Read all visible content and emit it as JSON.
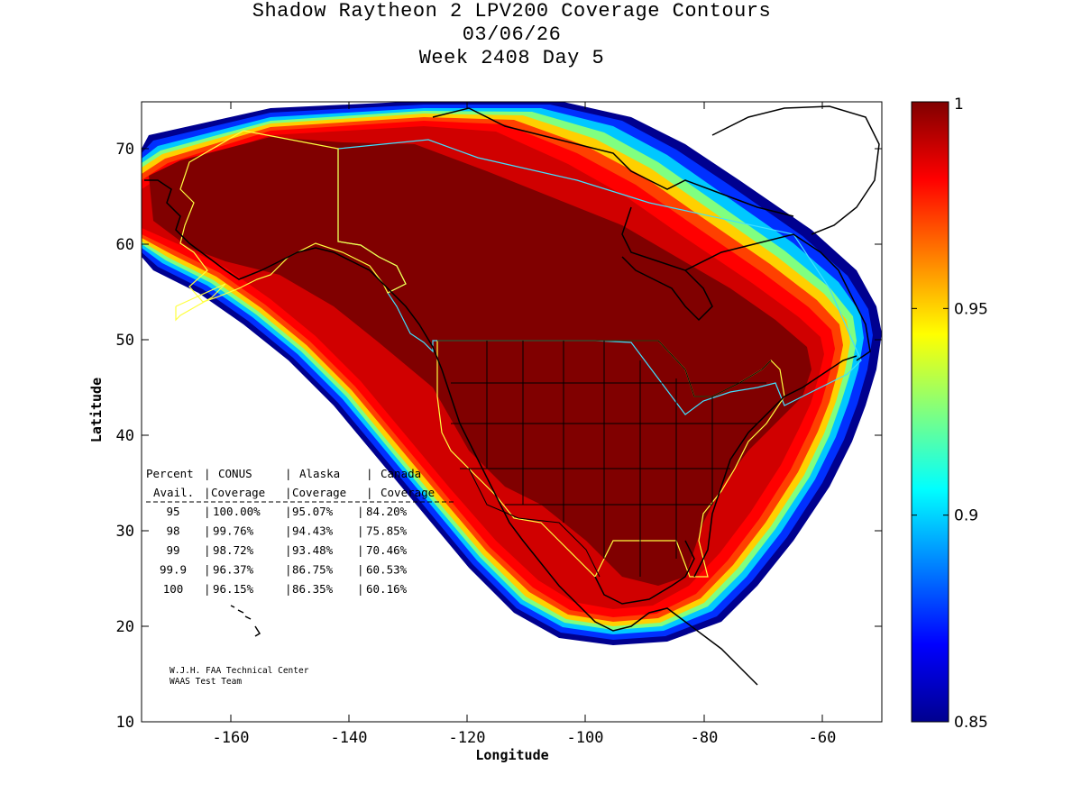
{
  "title_lines": [
    "Shadow Raytheon 2 LPV200 Coverage Contours",
    "03/06/26",
    "Week 2408 Day 5"
  ],
  "chart_data": {
    "type": "heatmap",
    "title": "Shadow Raytheon 2 LPV200 Coverage Contours",
    "subtitle": [
      "03/06/26",
      "Week 2408 Day 5"
    ],
    "xlabel": "Longitude",
    "ylabel": "Latitude",
    "xlim": [
      -175,
      -50
    ],
    "ylim": [
      10,
      75
    ],
    "xticks": [
      -160,
      -140,
      -120,
      -100,
      -80,
      -60
    ],
    "xtick_labels": [
      "-160",
      "-140",
      "-120",
      "-100",
      "-80",
      "-60"
    ],
    "yticks": [
      10,
      20,
      30,
      40,
      50,
      60,
      70
    ],
    "ytick_labels": [
      "10",
      "20",
      "30",
      "40",
      "50",
      "60",
      "70"
    ],
    "colorbar": {
      "min": 0.85,
      "max": 1,
      "ticks": [
        0.85,
        0.9,
        0.95,
        1
      ],
      "tick_labels": [
        "0.85",
        "0.9",
        "0.95",
        "1"
      ],
      "colormap": "jet"
    },
    "coverage_table": {
      "header1": [
        "Percent",
        "CONUS",
        "Alaska",
        "Canada"
      ],
      "header2": [
        "Avail.",
        "Coverage",
        "Coverage",
        "Coverage"
      ],
      "rows": [
        [
          "95",
          "100.00%",
          "95.07%",
          "84.20%"
        ],
        [
          "98",
          "99.76%",
          "94.43%",
          "75.85%"
        ],
        [
          "99",
          "98.72%",
          "93.48%",
          "70.46%"
        ],
        [
          "99.9",
          "96.37%",
          "86.75%",
          "60.53%"
        ],
        [
          "100",
          "96.15%",
          "86.35%",
          "60.16%"
        ]
      ]
    },
    "credits": [
      "W.J.H. FAA Technical Center",
      "WAAS Test Team"
    ]
  }
}
